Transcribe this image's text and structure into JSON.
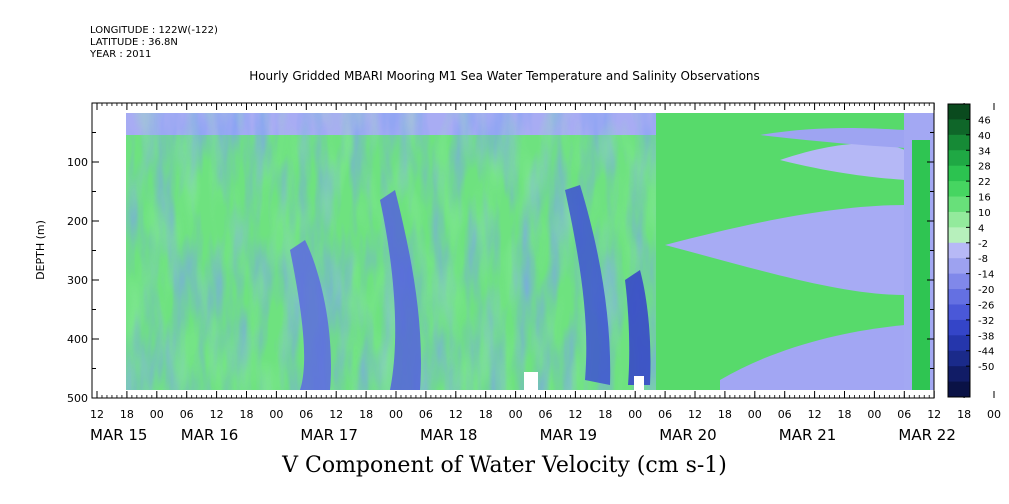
{
  "header": {
    "longitude": "LONGITUDE : 122W(-122)",
    "latitude": "LATITUDE : 36.8N",
    "year": "YEAR : 2011"
  },
  "chart_data": {
    "type": "heatmap",
    "title": "Hourly Gridded MBARI Mooring M1 Sea Water Temperature and Salinity Observations",
    "xlabel": "V Component of Water Velocity (cm s-1)",
    "ylabel": "DEPTH (m)",
    "y_ticks": [
      100,
      200,
      300,
      400,
      500
    ],
    "y_range": [
      0,
      500
    ],
    "x_hour_ticks": [
      "12",
      "18",
      "00",
      "06",
      "12",
      "18",
      "00",
      "06",
      "12",
      "18",
      "00",
      "06",
      "12",
      "18",
      "00",
      "06",
      "12",
      "18",
      "00",
      "06",
      "12",
      "18",
      "00",
      "06",
      "12",
      "18",
      "00",
      "06",
      "12",
      "18",
      "00",
      "06"
    ],
    "x_day_labels": [
      "MAR 15",
      "MAR 16",
      "MAR 17",
      "MAR 18",
      "MAR 19",
      "MAR 20",
      "MAR 21",
      "MAR 22"
    ],
    "colorbar": {
      "labels": [
        "46",
        "40",
        "34",
        "28",
        "22",
        "16",
        "10",
        "4",
        "-2",
        "-8",
        "-14",
        "-20",
        "-26",
        "-32",
        "-38",
        "-44",
        "-50"
      ],
      "colors": [
        "#0a4a1e",
        "#0f6629",
        "#168a36",
        "#1fa844",
        "#2cc350",
        "#46d561",
        "#68e07a",
        "#93ea9c",
        "#b7f0bc",
        "#b7b9f6",
        "#9da2f0",
        "#8088ea",
        "#6470e2",
        "#4a58d8",
        "#3445c8",
        "#2536ac",
        "#1a2a8a",
        "#111c66",
        "#0a1246"
      ]
    },
    "grid": false,
    "legend": "right"
  }
}
